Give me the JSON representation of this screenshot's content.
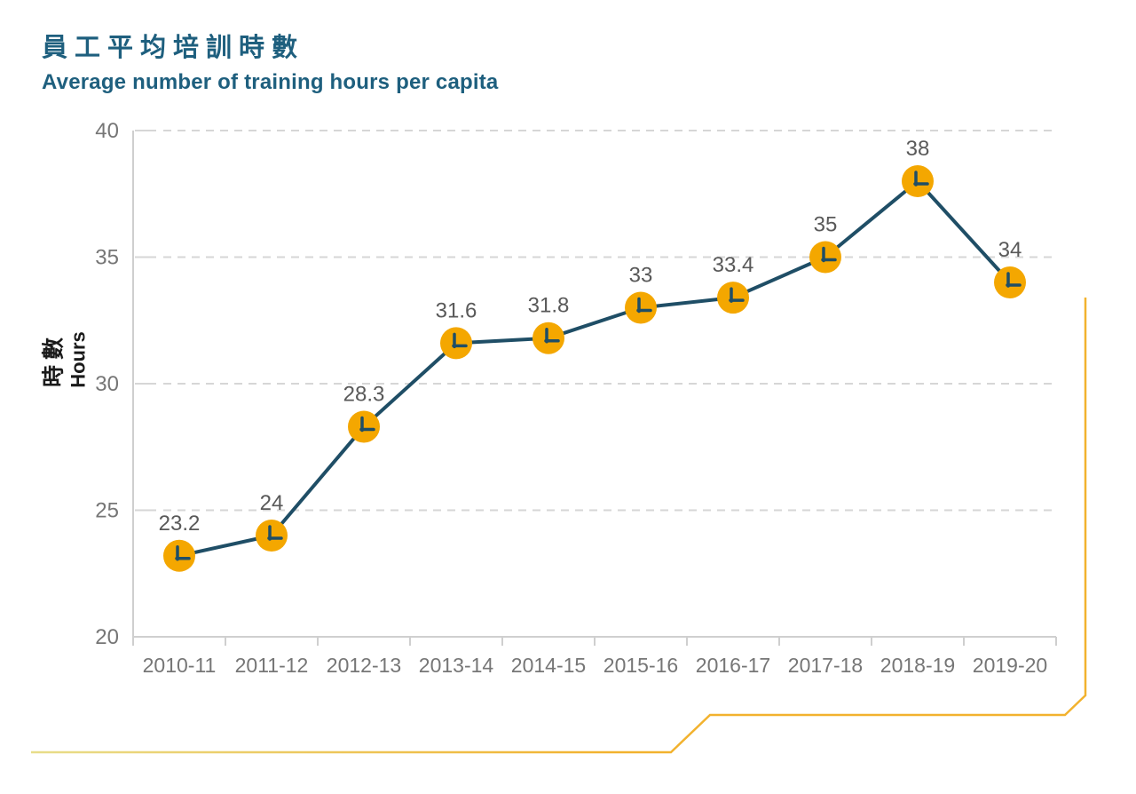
{
  "header": {
    "title_zh": "員工平均培訓時數",
    "title_en": "Average number of training hours per capita"
  },
  "y_axis_title": {
    "zh": "時數",
    "en": "Hours"
  },
  "chart_data": {
    "type": "line",
    "title": "Average number of training hours per capita",
    "title_zh": "員工平均培訓時數",
    "categories": [
      "2010-11",
      "2011-12",
      "2012-13",
      "2013-14",
      "2014-15",
      "2015-16",
      "2016-17",
      "2017-18",
      "2018-19",
      "2019-20"
    ],
    "values": [
      23.2,
      24,
      28.3,
      31.6,
      31.8,
      33,
      33.4,
      35,
      38,
      34
    ],
    "data_labels": [
      "23.2",
      "24",
      "28.3",
      "31.6",
      "31.8",
      "33",
      "33.4",
      "35",
      "38",
      "34"
    ],
    "xlabel": "",
    "ylabel_zh": "時數",
    "ylabel_en": "Hours",
    "ylim": [
      20,
      40
    ],
    "yticks": [
      20,
      25,
      30,
      35,
      40
    ],
    "grid": "horizontal dashed",
    "legend": "none",
    "marker_icon": "clock-icon",
    "colors": {
      "line": "#1F4E66",
      "marker": "#F4A700",
      "title": "#1E5F7E",
      "data_label": "#595959",
      "axis_text": "#767676",
      "gridline": "#D6D6D6",
      "axis_line": "#CFCFCF",
      "decor_gold": "#F2B22E",
      "decor_pale": "#E8DD8A"
    }
  }
}
